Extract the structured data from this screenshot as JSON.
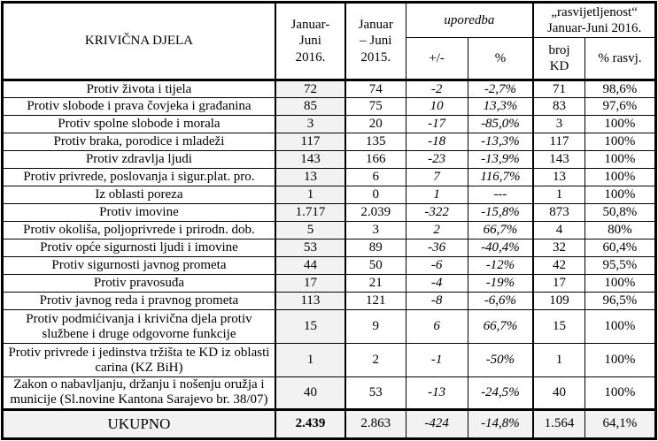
{
  "colors": {
    "border": "#000000",
    "text": "#000000",
    "shaded_column": "#f2f2f2",
    "total_row_shade": "#f2f2f2"
  },
  "table": {
    "header": {
      "col_offenses": "KRIVIČNA DJELA",
      "col_2016": "Januar-\nJuni\n2016.",
      "col_2015": "Januar\n– Juni\n2015.",
      "col_comparison": "uporedba",
      "col_clearance": "„rasvijetljenost“\nJanuar-Juni 2016.",
      "sub_plus_minus": "+/-",
      "sub_percent": "%",
      "sub_broj_kd": "broj\nKD",
      "sub_rasvj": "% rasvj."
    },
    "rows": [
      {
        "label": "Protiv života i tijela",
        "y2016": "72",
        "y2015": "74",
        "diff": "-2",
        "pct": "-2,7%",
        "kd": "71",
        "solved": "98,6%"
      },
      {
        "label": "Protiv slobode i prava čovjeka i građanina",
        "y2016": "85",
        "y2015": "75",
        "diff": "10",
        "pct": "13,3%",
        "kd": "83",
        "solved": "97,6%"
      },
      {
        "label": "Protiv spolne slobode i morala",
        "y2016": "3",
        "y2015": "20",
        "diff": "-17",
        "pct": "-85,0%",
        "kd": "3",
        "solved": "100%"
      },
      {
        "label": "Protiv braka, porodice i mladeži",
        "y2016": "117",
        "y2015": "135",
        "diff": "-18",
        "pct": "-13,3%",
        "kd": "117",
        "solved": "100%"
      },
      {
        "label": "Protiv zdravlja ljudi",
        "y2016": "143",
        "y2015": "166",
        "diff": "-23",
        "pct": "-13,9%",
        "kd": "143",
        "solved": "100%"
      },
      {
        "label": "Protiv privrede, poslovanja i sigur.plat. pro.",
        "y2016": "13",
        "y2015": "6",
        "diff": "7",
        "pct": "116,7%",
        "kd": "13",
        "solved": "100%"
      },
      {
        "label": "Iz oblasti poreza",
        "y2016": "1",
        "y2015": "0",
        "diff": "1",
        "pct": "---",
        "kd": "1",
        "solved": "100%"
      },
      {
        "label": "Protiv imovine",
        "y2016": "1.717",
        "y2015": "2.039",
        "diff": "-322",
        "pct": "-15,8%",
        "kd": "873",
        "solved": "50,8%"
      },
      {
        "label": "Protiv okoliša, poljoprivrede i prirodn. dob.",
        "y2016": "5",
        "y2015": "3",
        "diff": "2",
        "pct": "66,7%",
        "kd": "4",
        "solved": "80%"
      },
      {
        "label": "Protiv opće sigurnosti ljudi i imovine",
        "y2016": "53",
        "y2015": "89",
        "diff": "-36",
        "pct": "-40,4%",
        "kd": "32",
        "solved": "60,4%"
      },
      {
        "label": "Protiv sigurnosti javnog prometa",
        "y2016": "44",
        "y2015": "50",
        "diff": "-6",
        "pct": "-12%",
        "kd": "42",
        "solved": "95,5%"
      },
      {
        "label": "Protiv pravosuđa",
        "y2016": "17",
        "y2015": "21",
        "diff": "-4",
        "pct": "-19%",
        "kd": "17",
        "solved": "100%"
      },
      {
        "label": "Protiv javnog reda i pravnog prometa",
        "y2016": "113",
        "y2015": "121",
        "diff": "-8",
        "pct": "-6,6%",
        "kd": "109",
        "solved": "96,5%"
      },
      {
        "label": "Protiv podmićivanja i krivična djela protiv službene i druge odgovorne funkcije",
        "y2016": "15",
        "y2015": "9",
        "diff": "6",
        "pct": "66,7%",
        "kd": "15",
        "solved": "100%"
      },
      {
        "label": "Protiv privrede i jedinstva tržišta te KD iz oblasti carina (KZ BiH)",
        "y2016": "1",
        "y2015": "2",
        "diff": "-1",
        "pct": "-50%",
        "kd": "1",
        "solved": "100%"
      },
      {
        "label": "Zakon o nabavljanju, držanju i nošenju oružja i municije (Sl.novine Kantona Sarajevo br. 38/07)",
        "y2016": "40",
        "y2015": "53",
        "diff": "-13",
        "pct": "-24,5%",
        "kd": "40",
        "solved": "100%"
      }
    ],
    "total": {
      "label": "UKUPNO",
      "y2016": "2.439",
      "y2015": "2.863",
      "diff": "-424",
      "pct": "-14,8%",
      "kd": "1.564",
      "solved": "64,1%"
    }
  }
}
